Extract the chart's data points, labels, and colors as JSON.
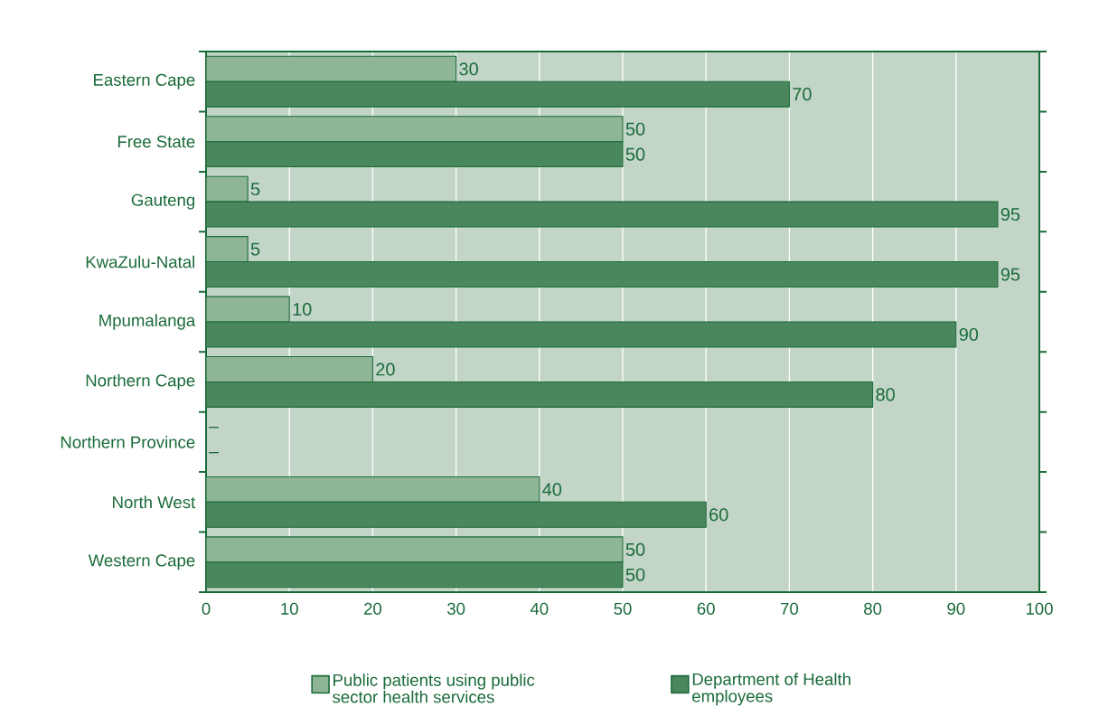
{
  "chart_data": {
    "type": "bar",
    "orientation": "horizontal",
    "categories": [
      "Eastern Cape",
      "Free State",
      "Gauteng",
      "KwaZulu-Natal",
      "Mpumalanga",
      "Northern Cape",
      "Northern Province",
      "North West",
      "Western Cape"
    ],
    "series": [
      {
        "name": "Public patients using public sector health services",
        "color": "#8fb597",
        "values": [
          30,
          50,
          5,
          5,
          10,
          20,
          null,
          40,
          50
        ],
        "value_labels": [
          "30",
          "50",
          "5",
          "5",
          "10",
          "20",
          "–",
          "40",
          "50"
        ]
      },
      {
        "name": "Department of Health employees",
        "color": "#4a875c",
        "values": [
          70,
          50,
          95,
          95,
          90,
          80,
          null,
          60,
          50
        ],
        "value_labels": [
          "70",
          "50",
          "95",
          "95",
          "90",
          "80",
          "–",
          "60",
          "50"
        ]
      }
    ],
    "xlim": [
      0,
      100
    ],
    "xticks": [
      0,
      10,
      20,
      30,
      40,
      50,
      60,
      70,
      80,
      90,
      100
    ],
    "grid": "x",
    "legend": "bottom"
  }
}
